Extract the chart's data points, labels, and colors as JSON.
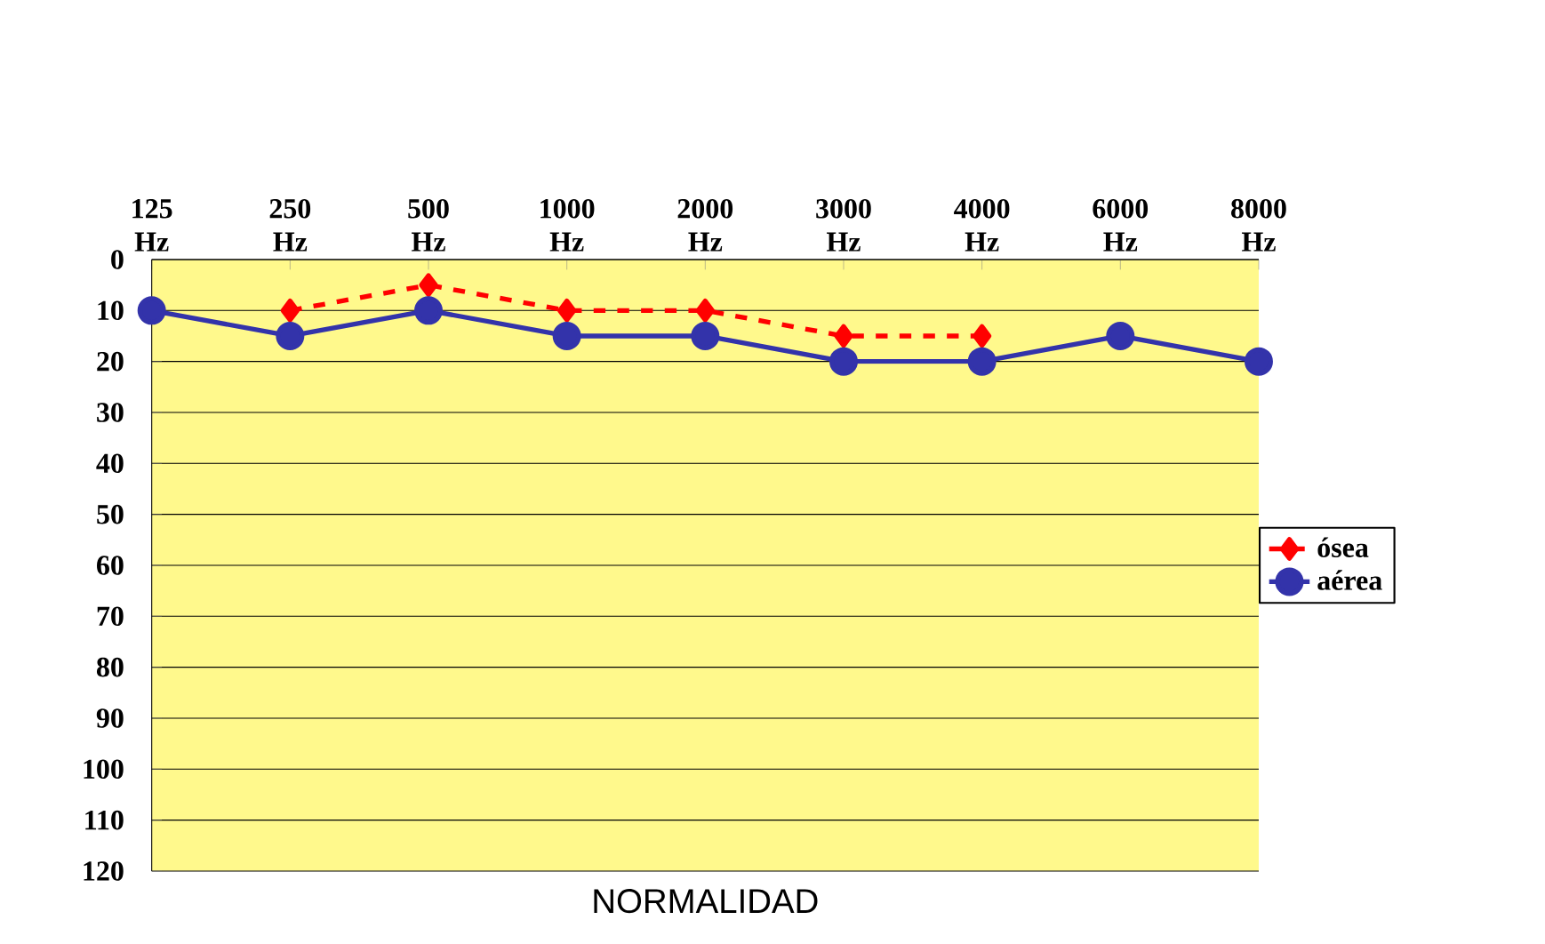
{
  "chart_data": {
    "type": "line",
    "xlabel": "NORMALIDAD",
    "categories": [
      "125 Hz",
      "250 Hz",
      "500 Hz",
      "1000 Hz",
      "2000 Hz",
      "3000 Hz",
      "4000 Hz",
      "6000 Hz",
      "8000 Hz"
    ],
    "series": [
      {
        "name": "ósea",
        "color": "#ff0000",
        "marker": "diamond",
        "line_style": "dashed",
        "values": [
          null,
          10,
          5,
          10,
          10,
          15,
          15,
          null,
          null
        ]
      },
      {
        "name": "aérea",
        "color": "#3333aa",
        "marker": "circle",
        "line_style": "solid",
        "values": [
          10,
          15,
          10,
          15,
          15,
          20,
          20,
          15,
          20
        ]
      }
    ],
    "ylim": [
      120,
      0
    ],
    "yticks": [
      0,
      10,
      20,
      30,
      40,
      50,
      60,
      70,
      80,
      90,
      100,
      110,
      120
    ],
    "grid": "y",
    "legend": "right"
  }
}
